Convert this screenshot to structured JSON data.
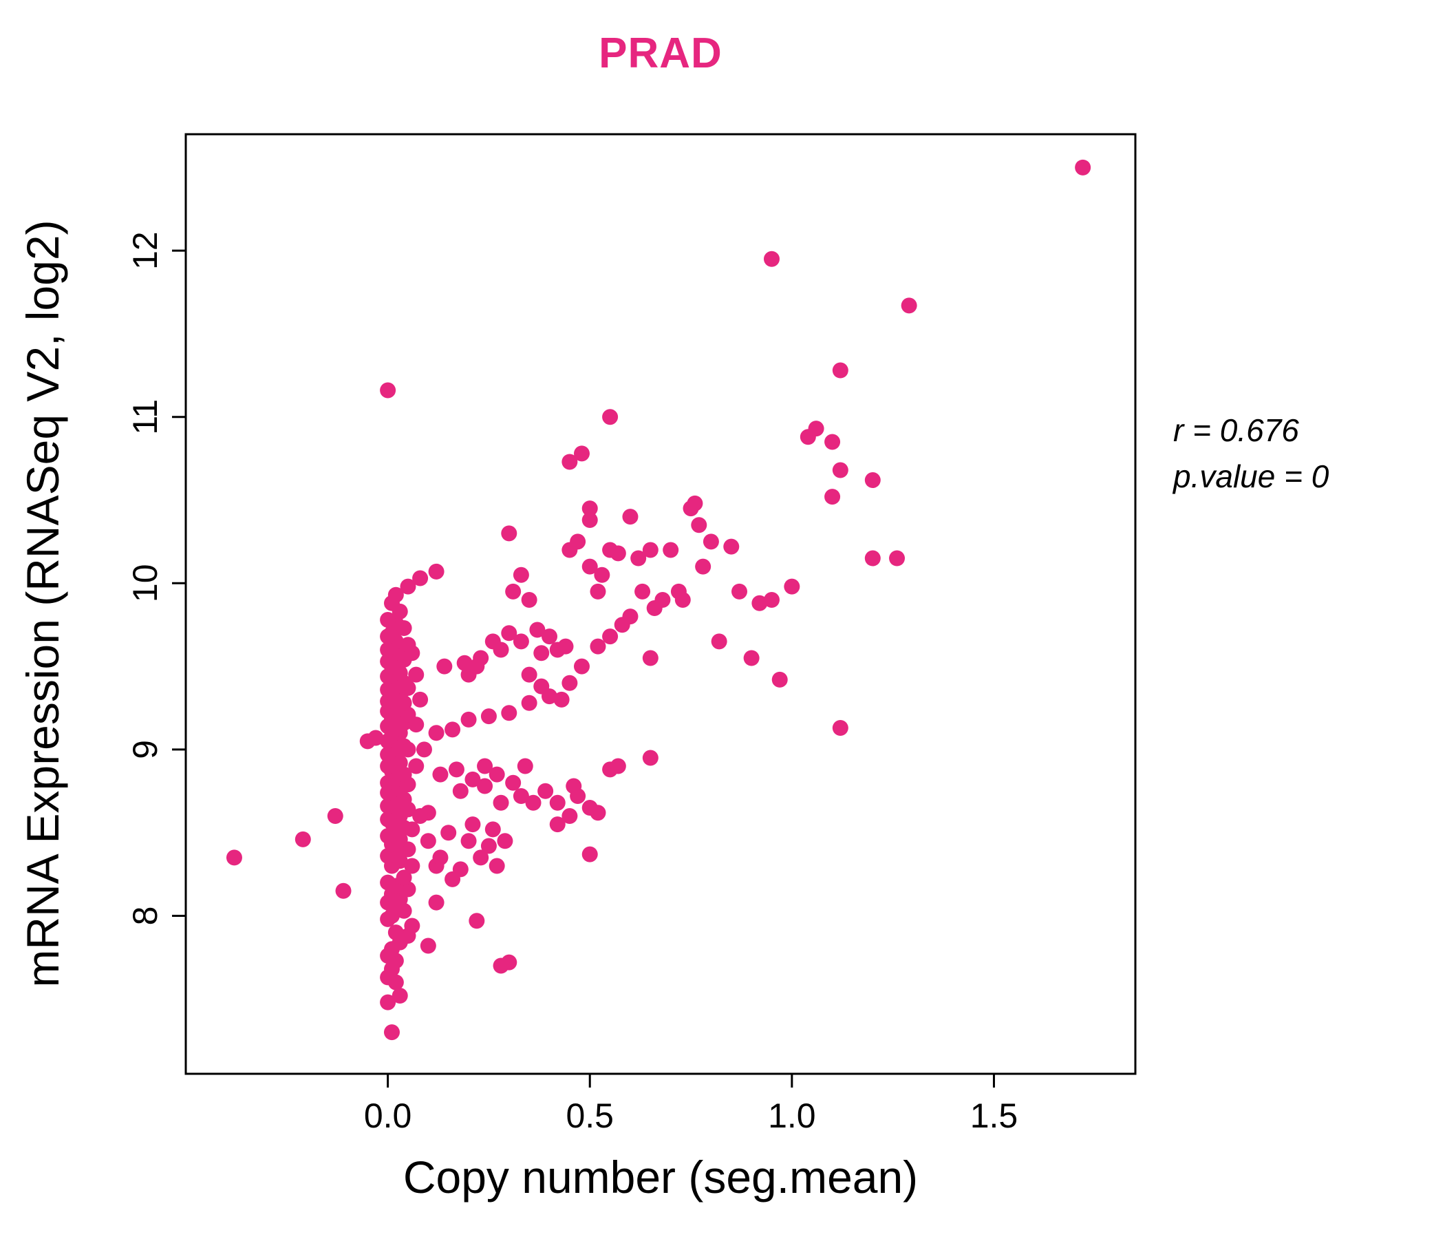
{
  "chart_data": {
    "type": "scatter",
    "title": "PRAD",
    "title_color": "#E6267F",
    "xlabel": "Copy number (seg.mean)",
    "ylabel": "mRNA Expression (RNASeq V2, log2)",
    "annotation_r": "r = 0.676",
    "annotation_p": "p.value = 0",
    "point_color": "#E6267F",
    "xlim": [
      -0.5,
      1.85
    ],
    "ylim": [
      7.05,
      12.7
    ],
    "grid": false,
    "legend": "none",
    "xticks": {
      "values": [
        0,
        0.5,
        1,
        1.5
      ],
      "labels": [
        "0.0",
        "0.5",
        "1.0",
        "1.5"
      ]
    },
    "yticks": {
      "values": [
        8,
        9,
        10,
        11,
        12
      ],
      "labels": [
        "8",
        "9",
        "10",
        "11",
        "12"
      ]
    },
    "points": [
      [
        0.01,
        7.3
      ],
      [
        0.0,
        7.48
      ],
      [
        0.03,
        7.52
      ],
      [
        0.02,
        7.6
      ],
      [
        0.0,
        7.63
      ],
      [
        0.01,
        7.68
      ],
      [
        0.3,
        7.72
      ],
      [
        0.02,
        7.73
      ],
      [
        0.0,
        7.76
      ],
      [
        0.01,
        7.8
      ],
      [
        0.1,
        7.82
      ],
      [
        0.03,
        7.84
      ],
      [
        0.05,
        7.88
      ],
      [
        0.02,
        7.9
      ],
      [
        0.06,
        7.94
      ],
      [
        0.22,
        7.97
      ],
      [
        0.0,
        7.98
      ],
      [
        0.01,
        8.0
      ],
      [
        0.04,
        8.03
      ],
      [
        0.02,
        8.06
      ],
      [
        0.0,
        8.08
      ],
      [
        0.03,
        8.1
      ],
      [
        0.01,
        8.13
      ],
      [
        -0.11,
        8.15
      ],
      [
        0.05,
        8.16
      ],
      [
        0.02,
        8.18
      ],
      [
        0.0,
        8.2
      ],
      [
        0.04,
        8.23
      ],
      [
        0.12,
        8.3
      ],
      [
        0.18,
        8.28
      ],
      [
        0.01,
        8.3
      ],
      [
        0.03,
        8.33
      ],
      [
        -0.38,
        8.35
      ],
      [
        0.0,
        8.36
      ],
      [
        0.02,
        8.38
      ],
      [
        0.27,
        8.3
      ],
      [
        0.25,
        8.42
      ],
      [
        0.05,
        8.4
      ],
      [
        0.01,
        8.43
      ],
      [
        -0.21,
        8.46
      ],
      [
        0.03,
        8.46
      ],
      [
        0.0,
        8.48
      ],
      [
        0.16,
        8.22
      ],
      [
        0.13,
        8.35
      ],
      [
        0.1,
        8.45
      ],
      [
        0.2,
        8.45
      ],
      [
        0.23,
        8.35
      ],
      [
        0.26,
        8.52
      ],
      [
        0.29,
        8.45
      ],
      [
        0.5,
        8.37
      ],
      [
        0.02,
        8.5
      ],
      [
        0.06,
        8.52
      ],
      [
        0.15,
        8.5
      ],
      [
        0.21,
        8.55
      ],
      [
        0.04,
        8.53
      ],
      [
        0.01,
        8.56
      ],
      [
        0.0,
        8.58
      ],
      [
        -0.13,
        8.6
      ],
      [
        0.03,
        8.6
      ],
      [
        0.02,
        8.63
      ],
      [
        0.05,
        8.64
      ],
      [
        0.1,
        8.62
      ],
      [
        0.0,
        8.66
      ],
      [
        0.01,
        8.68
      ],
      [
        0.28,
        8.68
      ],
      [
        0.33,
        8.72
      ],
      [
        0.04,
        8.7
      ],
      [
        0.02,
        8.73
      ],
      [
        0.0,
        8.74
      ],
      [
        0.39,
        8.75
      ],
      [
        0.42,
        8.68
      ],
      [
        0.03,
        8.76
      ],
      [
        0.01,
        8.78
      ],
      [
        0.05,
        8.79
      ],
      [
        0.46,
        8.78
      ],
      [
        0.5,
        8.65
      ],
      [
        0.52,
        8.62
      ],
      [
        0.45,
        8.6
      ],
      [
        0.47,
        8.72
      ],
      [
        0.42,
        8.55
      ],
      [
        0.36,
        8.68
      ],
      [
        0.18,
        8.75
      ],
      [
        0.21,
        8.82
      ],
      [
        0.24,
        8.78
      ],
      [
        0.0,
        8.8
      ],
      [
        0.02,
        8.82
      ],
      [
        0.13,
        8.85
      ],
      [
        0.17,
        8.88
      ],
      [
        0.04,
        8.85
      ],
      [
        0.01,
        8.87
      ],
      [
        0.0,
        8.9
      ],
      [
        0.24,
        8.9
      ],
      [
        0.03,
        8.92
      ],
      [
        0.55,
        8.88
      ],
      [
        0.57,
        8.9
      ],
      [
        0.02,
        8.95
      ],
      [
        0.0,
        8.97
      ],
      [
        0.27,
        8.85
      ],
      [
        0.31,
        8.8
      ],
      [
        0.34,
        8.9
      ],
      [
        0.01,
        9.0
      ],
      [
        0.05,
        9.0
      ],
      [
        0.04,
        9.02
      ],
      [
        0.02,
        9.03
      ],
      [
        -0.05,
        9.05
      ],
      [
        -0.03,
        9.07
      ],
      [
        0.0,
        9.05
      ],
      [
        0.01,
        9.08
      ],
      [
        0.03,
        9.1
      ],
      [
        0.12,
        9.1
      ],
      [
        0.16,
        9.12
      ],
      [
        0.65,
        8.95
      ],
      [
        0.02,
        9.12
      ],
      [
        0.0,
        9.14
      ],
      [
        0.2,
        9.18
      ],
      [
        0.04,
        9.16
      ],
      [
        0.01,
        9.18
      ],
      [
        0.03,
        9.2
      ],
      [
        0.05,
        9.21
      ],
      [
        0.0,
        9.23
      ],
      [
        0.02,
        9.24
      ],
      [
        0.25,
        9.2
      ],
      [
        0.3,
        9.22
      ],
      [
        0.01,
        9.26
      ],
      [
        0.04,
        9.28
      ],
      [
        0.0,
        9.29
      ],
      [
        0.02,
        9.3
      ],
      [
        0.35,
        9.28
      ],
      [
        0.03,
        9.32
      ],
      [
        0.01,
        9.34
      ],
      [
        0.4,
        9.32
      ],
      [
        0.0,
        9.36
      ],
      [
        0.05,
        9.37
      ],
      [
        0.02,
        9.38
      ],
      [
        0.45,
        9.4
      ],
      [
        0.43,
        9.3
      ],
      [
        0.38,
        9.38
      ],
      [
        1.12,
        9.13
      ],
      [
        0.97,
        9.42
      ],
      [
        0.04,
        9.4
      ],
      [
        0.01,
        9.43
      ],
      [
        0.0,
        9.44
      ],
      [
        0.03,
        9.46
      ],
      [
        0.02,
        9.48
      ],
      [
        0.14,
        9.5
      ],
      [
        0.19,
        9.52
      ],
      [
        0.01,
        9.5
      ],
      [
        0.0,
        9.53
      ],
      [
        0.04,
        9.54
      ],
      [
        0.23,
        9.55
      ],
      [
        0.02,
        9.56
      ],
      [
        0.03,
        9.58
      ],
      [
        0.0,
        9.6
      ],
      [
        0.01,
        9.62
      ],
      [
        0.28,
        9.6
      ],
      [
        0.05,
        9.63
      ],
      [
        0.02,
        9.65
      ],
      [
        0.0,
        9.68
      ],
      [
        0.33,
        9.65
      ],
      [
        0.2,
        9.45
      ],
      [
        0.22,
        9.5
      ],
      [
        0.26,
        9.65
      ],
      [
        0.35,
        9.45
      ],
      [
        0.48,
        9.5
      ],
      [
        0.52,
        9.62
      ],
      [
        0.55,
        9.68
      ],
      [
        0.65,
        9.55
      ],
      [
        0.9,
        9.55
      ],
      [
        0.82,
        9.65
      ],
      [
        0.01,
        9.7
      ],
      [
        0.04,
        9.73
      ],
      [
        0.02,
        9.76
      ],
      [
        0.0,
        9.78
      ],
      [
        0.03,
        9.83
      ],
      [
        0.01,
        9.88
      ],
      [
        0.02,
        9.93
      ],
      [
        0.05,
        9.98
      ],
      [
        0.08,
        10.03
      ],
      [
        0.12,
        10.07
      ],
      [
        0.3,
        9.7
      ],
      [
        0.31,
        9.95
      ],
      [
        0.33,
        10.05
      ],
      [
        0.35,
        9.9
      ],
      [
        0.37,
        9.72
      ],
      [
        0.38,
        9.58
      ],
      [
        0.4,
        9.68
      ],
      [
        0.42,
        9.6
      ],
      [
        0.44,
        9.62
      ],
      [
        0.5,
        10.1
      ],
      [
        0.52,
        9.95
      ],
      [
        0.53,
        10.05
      ],
      [
        0.58,
        9.75
      ],
      [
        0.6,
        9.8
      ],
      [
        0.63,
        9.95
      ],
      [
        0.68,
        9.9
      ],
      [
        0.66,
        9.85
      ],
      [
        0.72,
        9.95
      ],
      [
        0.73,
        9.9
      ],
      [
        0.78,
        10.1
      ],
      [
        0.87,
        9.95
      ],
      [
        0.92,
        9.88
      ],
      [
        0.95,
        9.9
      ],
      [
        1.0,
        9.98
      ],
      [
        0.3,
        10.3
      ],
      [
        0.45,
        10.2
      ],
      [
        0.47,
        10.25
      ],
      [
        0.48,
        10.78
      ],
      [
        0.45,
        10.73
      ],
      [
        0.5,
        10.45
      ],
      [
        0.5,
        10.38
      ],
      [
        0.55,
        11.0
      ],
      [
        0.55,
        10.2
      ],
      [
        0.57,
        10.18
      ],
      [
        0.6,
        10.4
      ],
      [
        0.62,
        10.15
      ],
      [
        0.65,
        10.2
      ],
      [
        0.7,
        10.2
      ],
      [
        0.75,
        10.45
      ],
      [
        0.76,
        10.48
      ],
      [
        0.77,
        10.35
      ],
      [
        0.8,
        10.25
      ],
      [
        0.85,
        10.22
      ],
      [
        1.04,
        10.88
      ],
      [
        1.06,
        10.93
      ],
      [
        1.1,
        10.85
      ],
      [
        1.1,
        10.52
      ],
      [
        1.12,
        11.28
      ],
      [
        1.12,
        10.68
      ],
      [
        1.2,
        10.62
      ],
      [
        1.2,
        10.15
      ],
      [
        1.26,
        10.15
      ],
      [
        1.29,
        11.67
      ],
      [
        0.95,
        11.95
      ],
      [
        1.72,
        12.5
      ],
      [
        0.0,
        11.16
      ],
      [
        0.28,
        7.7
      ],
      [
        0.12,
        8.08
      ],
      [
        0.07,
        9.45
      ],
      [
        0.08,
        9.3
      ],
      [
        0.07,
        8.9
      ],
      [
        0.08,
        8.6
      ],
      [
        0.06,
        8.3
      ],
      [
        0.07,
        9.15
      ],
      [
        0.09,
        9.0
      ],
      [
        0.06,
        9.58
      ]
    ]
  }
}
